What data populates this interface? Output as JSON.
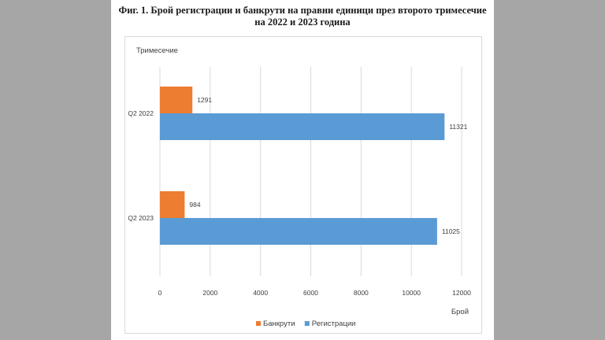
{
  "chart_data": {
    "type": "bar",
    "orientation": "horizontal",
    "title": "Фиг. 1. Брой регистрации и банкрути на правни единици през  второто тримесечие на 2022 и 2023 година",
    "title_lines": [
      "Фиг. 1. Брой регистрации и банкрути на правни единици през  второто тримесечие",
      "на 2022 и 2023 година"
    ],
    "ylabel": "Тримесечие",
    "xlabel": "Брой",
    "categories": [
      "Q2 2022",
      "Q2 2023"
    ],
    "series": [
      {
        "name": "Банкрути",
        "color": "#ed7d31",
        "values": [
          1291,
          984
        ]
      },
      {
        "name": "Регистрации",
        "color": "#5b9bd5",
        "values": [
          11321,
          11025
        ]
      }
    ],
    "xlim": [
      0,
      12000
    ],
    "xticks": [
      "0",
      "2000",
      "4000",
      "6000",
      "8000",
      "10000",
      "12000"
    ],
    "grid": true,
    "legend": "bottom"
  }
}
